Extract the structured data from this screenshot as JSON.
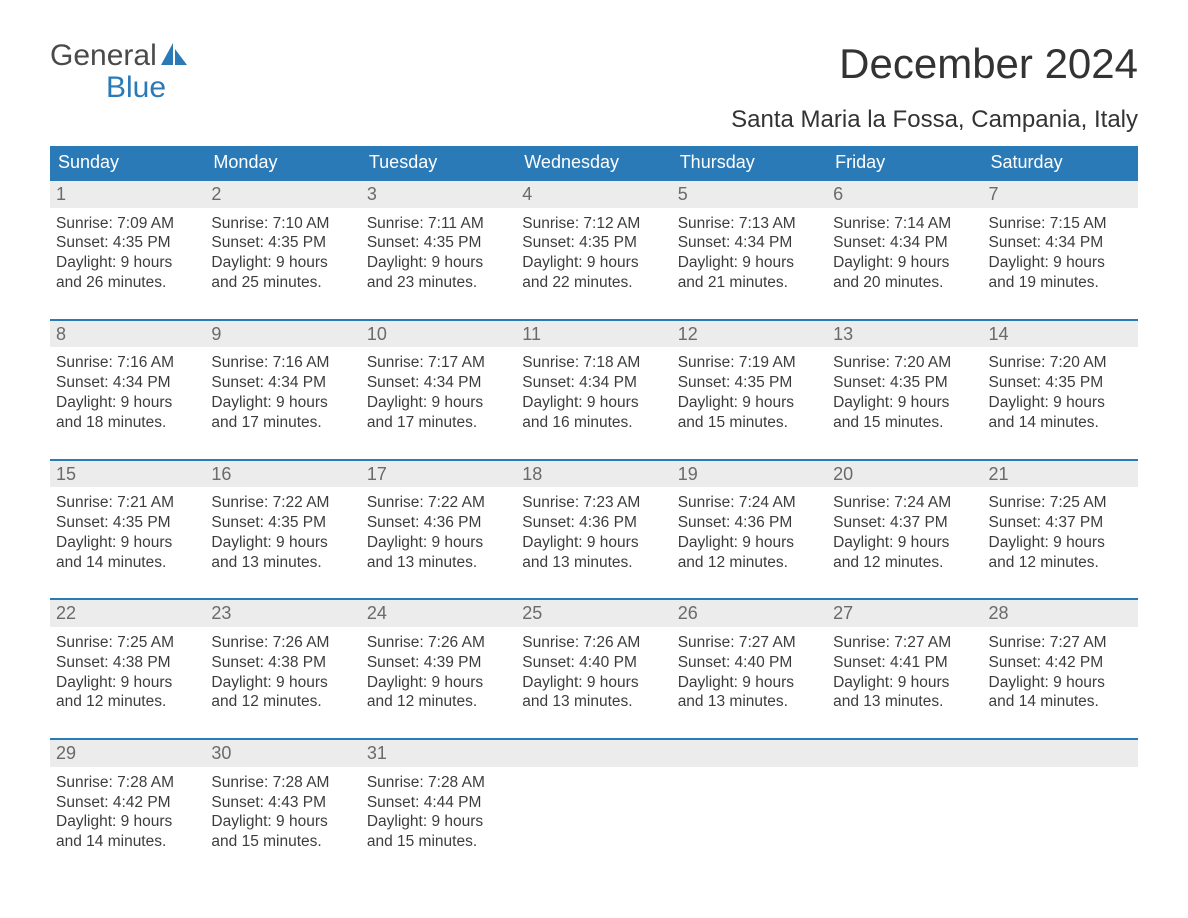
{
  "logo": {
    "word1": "General",
    "word2": "Blue"
  },
  "title": {
    "month": "December 2024",
    "location": "Santa Maria la Fossa, Campania, Italy"
  },
  "colors": {
    "header_bg": "#2a7ab8",
    "header_text": "#ffffff",
    "daybar_bg": "#ececec",
    "daybar_text": "#6a6a6a",
    "body_text": "#3d3d3d",
    "week_border": "#2a7ab8",
    "logo_gray": "#4a4a4a",
    "logo_blue": "#2a7ab8"
  },
  "day_headers": [
    "Sunday",
    "Monday",
    "Tuesday",
    "Wednesday",
    "Thursday",
    "Friday",
    "Saturday"
  ],
  "weeks": [
    [
      {
        "n": "1",
        "sunrise": "Sunrise: 7:09 AM",
        "sunset": "Sunset: 4:35 PM",
        "day1": "Daylight: 9 hours",
        "day2": "and 26 minutes."
      },
      {
        "n": "2",
        "sunrise": "Sunrise: 7:10 AM",
        "sunset": "Sunset: 4:35 PM",
        "day1": "Daylight: 9 hours",
        "day2": "and 25 minutes."
      },
      {
        "n": "3",
        "sunrise": "Sunrise: 7:11 AM",
        "sunset": "Sunset: 4:35 PM",
        "day1": "Daylight: 9 hours",
        "day2": "and 23 minutes."
      },
      {
        "n": "4",
        "sunrise": "Sunrise: 7:12 AM",
        "sunset": "Sunset: 4:35 PM",
        "day1": "Daylight: 9 hours",
        "day2": "and 22 minutes."
      },
      {
        "n": "5",
        "sunrise": "Sunrise: 7:13 AM",
        "sunset": "Sunset: 4:34 PM",
        "day1": "Daylight: 9 hours",
        "day2": "and 21 minutes."
      },
      {
        "n": "6",
        "sunrise": "Sunrise: 7:14 AM",
        "sunset": "Sunset: 4:34 PM",
        "day1": "Daylight: 9 hours",
        "day2": "and 20 minutes."
      },
      {
        "n": "7",
        "sunrise": "Sunrise: 7:15 AM",
        "sunset": "Sunset: 4:34 PM",
        "day1": "Daylight: 9 hours",
        "day2": "and 19 minutes."
      }
    ],
    [
      {
        "n": "8",
        "sunrise": "Sunrise: 7:16 AM",
        "sunset": "Sunset: 4:34 PM",
        "day1": "Daylight: 9 hours",
        "day2": "and 18 minutes."
      },
      {
        "n": "9",
        "sunrise": "Sunrise: 7:16 AM",
        "sunset": "Sunset: 4:34 PM",
        "day1": "Daylight: 9 hours",
        "day2": "and 17 minutes."
      },
      {
        "n": "10",
        "sunrise": "Sunrise: 7:17 AM",
        "sunset": "Sunset: 4:34 PM",
        "day1": "Daylight: 9 hours",
        "day2": "and 17 minutes."
      },
      {
        "n": "11",
        "sunrise": "Sunrise: 7:18 AM",
        "sunset": "Sunset: 4:34 PM",
        "day1": "Daylight: 9 hours",
        "day2": "and 16 minutes."
      },
      {
        "n": "12",
        "sunrise": "Sunrise: 7:19 AM",
        "sunset": "Sunset: 4:35 PM",
        "day1": "Daylight: 9 hours",
        "day2": "and 15 minutes."
      },
      {
        "n": "13",
        "sunrise": "Sunrise: 7:20 AM",
        "sunset": "Sunset: 4:35 PM",
        "day1": "Daylight: 9 hours",
        "day2": "and 15 minutes."
      },
      {
        "n": "14",
        "sunrise": "Sunrise: 7:20 AM",
        "sunset": "Sunset: 4:35 PM",
        "day1": "Daylight: 9 hours",
        "day2": "and 14 minutes."
      }
    ],
    [
      {
        "n": "15",
        "sunrise": "Sunrise: 7:21 AM",
        "sunset": "Sunset: 4:35 PM",
        "day1": "Daylight: 9 hours",
        "day2": "and 14 minutes."
      },
      {
        "n": "16",
        "sunrise": "Sunrise: 7:22 AM",
        "sunset": "Sunset: 4:35 PM",
        "day1": "Daylight: 9 hours",
        "day2": "and 13 minutes."
      },
      {
        "n": "17",
        "sunrise": "Sunrise: 7:22 AM",
        "sunset": "Sunset: 4:36 PM",
        "day1": "Daylight: 9 hours",
        "day2": "and 13 minutes."
      },
      {
        "n": "18",
        "sunrise": "Sunrise: 7:23 AM",
        "sunset": "Sunset: 4:36 PM",
        "day1": "Daylight: 9 hours",
        "day2": "and 13 minutes."
      },
      {
        "n": "19",
        "sunrise": "Sunrise: 7:24 AM",
        "sunset": "Sunset: 4:36 PM",
        "day1": "Daylight: 9 hours",
        "day2": "and 12 minutes."
      },
      {
        "n": "20",
        "sunrise": "Sunrise: 7:24 AM",
        "sunset": "Sunset: 4:37 PM",
        "day1": "Daylight: 9 hours",
        "day2": "and 12 minutes."
      },
      {
        "n": "21",
        "sunrise": "Sunrise: 7:25 AM",
        "sunset": "Sunset: 4:37 PM",
        "day1": "Daylight: 9 hours",
        "day2": "and 12 minutes."
      }
    ],
    [
      {
        "n": "22",
        "sunrise": "Sunrise: 7:25 AM",
        "sunset": "Sunset: 4:38 PM",
        "day1": "Daylight: 9 hours",
        "day2": "and 12 minutes."
      },
      {
        "n": "23",
        "sunrise": "Sunrise: 7:26 AM",
        "sunset": "Sunset: 4:38 PM",
        "day1": "Daylight: 9 hours",
        "day2": "and 12 minutes."
      },
      {
        "n": "24",
        "sunrise": "Sunrise: 7:26 AM",
        "sunset": "Sunset: 4:39 PM",
        "day1": "Daylight: 9 hours",
        "day2": "and 12 minutes."
      },
      {
        "n": "25",
        "sunrise": "Sunrise: 7:26 AM",
        "sunset": "Sunset: 4:40 PM",
        "day1": "Daylight: 9 hours",
        "day2": "and 13 minutes."
      },
      {
        "n": "26",
        "sunrise": "Sunrise: 7:27 AM",
        "sunset": "Sunset: 4:40 PM",
        "day1": "Daylight: 9 hours",
        "day2": "and 13 minutes."
      },
      {
        "n": "27",
        "sunrise": "Sunrise: 7:27 AM",
        "sunset": "Sunset: 4:41 PM",
        "day1": "Daylight: 9 hours",
        "day2": "and 13 minutes."
      },
      {
        "n": "28",
        "sunrise": "Sunrise: 7:27 AM",
        "sunset": "Sunset: 4:42 PM",
        "day1": "Daylight: 9 hours",
        "day2": "and 14 minutes."
      }
    ],
    [
      {
        "n": "29",
        "sunrise": "Sunrise: 7:28 AM",
        "sunset": "Sunset: 4:42 PM",
        "day1": "Daylight: 9 hours",
        "day2": "and 14 minutes."
      },
      {
        "n": "30",
        "sunrise": "Sunrise: 7:28 AM",
        "sunset": "Sunset: 4:43 PM",
        "day1": "Daylight: 9 hours",
        "day2": "and 15 minutes."
      },
      {
        "n": "31",
        "sunrise": "Sunrise: 7:28 AM",
        "sunset": "Sunset: 4:44 PM",
        "day1": "Daylight: 9 hours",
        "day2": "and 15 minutes."
      },
      {
        "empty": true
      },
      {
        "empty": true
      },
      {
        "empty": true
      },
      {
        "empty": true
      }
    ]
  ]
}
